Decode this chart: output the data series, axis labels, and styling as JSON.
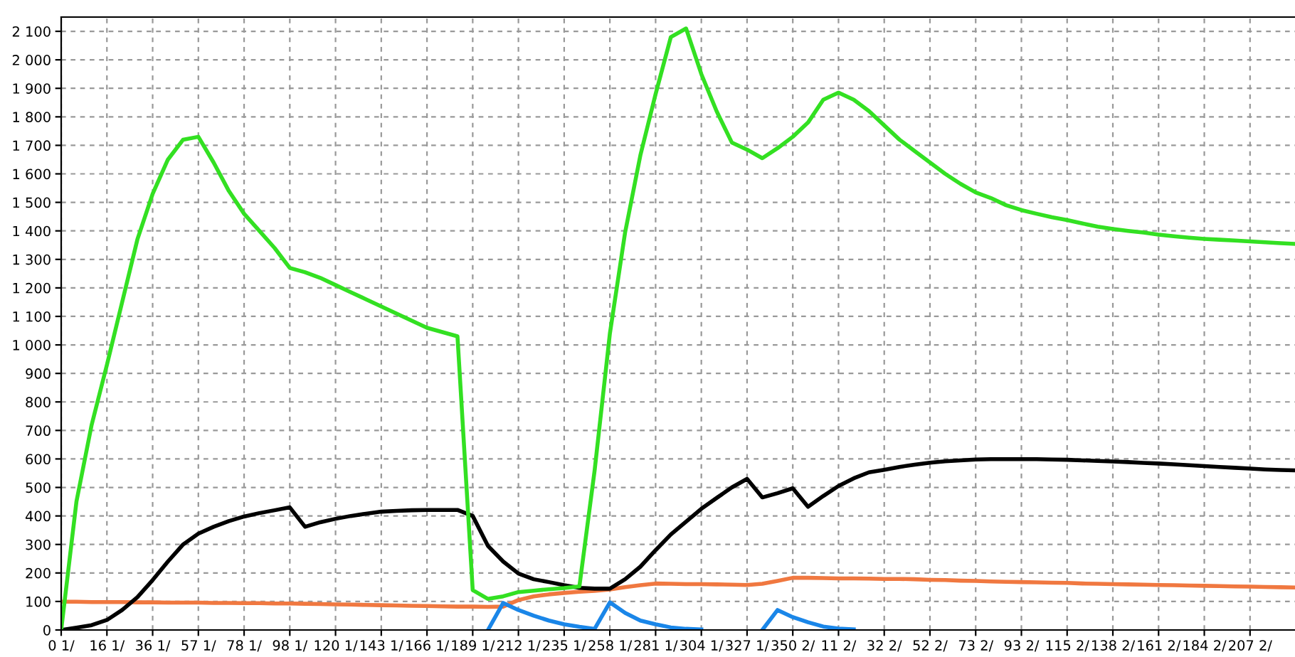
{
  "chart_data": {
    "type": "line",
    "categories": [
      "0 1/",
      null,
      null,
      "16 1/",
      null,
      null,
      "36 1/",
      null,
      null,
      "57 1/",
      null,
      null,
      "78 1/",
      null,
      null,
      "98 1/",
      null,
      null,
      "120 1/",
      null,
      null,
      "143 1/",
      null,
      null,
      "166 1/",
      null,
      null,
      "189 1/",
      null,
      null,
      "212 1/",
      null,
      null,
      "235 1/",
      null,
      null,
      "258 1/",
      null,
      null,
      "281 1/",
      null,
      null,
      "304 1/",
      null,
      null,
      "327 1/",
      null,
      null,
      "350 2/",
      null,
      null,
      "11 2/",
      null,
      null,
      "32 2/",
      null,
      null,
      "52 2/",
      null,
      null,
      "73 2/",
      null,
      null,
      "93 2/",
      null,
      null,
      "115 2/",
      null,
      null,
      "138 2/",
      null,
      null,
      "161 2/",
      null,
      null,
      "184 2/",
      null,
      null,
      "207 2/",
      null,
      null,
      null
    ],
    "ylim": [
      0,
      2150
    ],
    "yticks": [
      0,
      100,
      200,
      300,
      400,
      500,
      600,
      700,
      800,
      900,
      {
        "value": 1000,
        "label": "1 000"
      },
      {
        "value": 1100,
        "label": "1 100"
      },
      {
        "value": 1200,
        "label": "1 200"
      },
      {
        "value": 1300,
        "label": "1 300"
      },
      {
        "value": 1400,
        "label": "1 400"
      },
      {
        "value": 1500,
        "label": "1 500"
      },
      {
        "value": 1600,
        "label": "1 600"
      },
      {
        "value": 1700,
        "label": "1 700"
      },
      {
        "value": 1800,
        "label": "1 800"
      },
      {
        "value": 1900,
        "label": "1 900"
      },
      {
        "value": 2000,
        "label": "2 000"
      },
      {
        "value": 2100,
        "label": "2 100"
      }
    ],
    "grid": true,
    "marker": "none",
    "line_style": "solid",
    "series": [
      {
        "color": "#f07840",
        "values": [
          99,
          99,
          98,
          98,
          98,
          97,
          97,
          96,
          96,
          96,
          95,
          95,
          94,
          94,
          93,
          93,
          92,
          91,
          90,
          89,
          88,
          87,
          86,
          85,
          84,
          83,
          82,
          82,
          81,
          82,
          105,
          118,
          125,
          130,
          134,
          137,
          142,
          150,
          157,
          163,
          162,
          161,
          161,
          160,
          159,
          158,
          162,
          172,
          183,
          183,
          182,
          181,
          181,
          180,
          179,
          179,
          178,
          176,
          175,
          173,
          172,
          170,
          169,
          168,
          167,
          166,
          165,
          163,
          162,
          161,
          160,
          159,
          158,
          157,
          156,
          155,
          154,
          153,
          152,
          151,
          150,
          149
        ]
      },
      {
        "color": "#1a86e8",
        "values": [
          null,
          null,
          null,
          null,
          null,
          null,
          null,
          null,
          null,
          null,
          null,
          null,
          null,
          null,
          null,
          null,
          null,
          null,
          null,
          null,
          null,
          null,
          null,
          null,
          null,
          null,
          null,
          null,
          0,
          95,
          70,
          50,
          33,
          20,
          11,
          4,
          97,
          60,
          33,
          20,
          9,
          4,
          2,
          null,
          null,
          null,
          0,
          70,
          45,
          27,
          12,
          5,
          2,
          null,
          null,
          null,
          null,
          null,
          null,
          null,
          null,
          null,
          null,
          null,
          null,
          null,
          null,
          null,
          null,
          null,
          null,
          null,
          null,
          null,
          null,
          null,
          null,
          null,
          null,
          null,
          null,
          null
        ]
      },
      {
        "color": "#000000",
        "values": [
          0,
          8,
          17,
          35,
          70,
          115,
          175,
          240,
          300,
          338,
          362,
          382,
          398,
          410,
          420,
          430,
          362,
          378,
          390,
          400,
          408,
          415,
          418,
          420,
          421,
          421,
          421,
          400,
          295,
          240,
          198,
          178,
          168,
          157,
          148,
          145,
          145,
          178,
          222,
          280,
          335,
          380,
          425,
          463,
          500,
          530,
          465,
          480,
          497,
          432,
          470,
          505,
          532,
          553,
          562,
          572,
          580,
          587,
          592,
          595,
          598,
          599,
          599,
          599,
          599,
          598,
          597,
          595,
          593,
          591,
          589,
          586,
          584,
          581,
          578,
          575,
          572,
          569,
          566,
          563,
          561,
          560
        ]
      },
      {
        "color": "#33e022",
        "values": [
          0,
          450,
          720,
          930,
          1150,
          1370,
          1530,
          1650,
          1720,
          1730,
          1640,
          1540,
          1460,
          1400,
          1340,
          1270,
          1255,
          1235,
          1210,
          1185,
          1160,
          1135,
          1110,
          1085,
          1060,
          1045,
          1030,
          140,
          109,
          118,
          133,
          138,
          143,
          147,
          153,
          560,
          1040,
          1395,
          1665,
          1880,
          2080,
          2110,
          1950,
          1820,
          1710,
          1685,
          1655,
          1690,
          1730,
          1780,
          1860,
          1885,
          1860,
          1820,
          1770,
          1720,
          1680,
          1640,
          1600,
          1565,
          1535,
          1515,
          1490,
          1473,
          1460,
          1448,
          1438,
          1426,
          1415,
          1407,
          1400,
          1394,
          1387,
          1381,
          1376,
          1372,
          1369,
          1366,
          1363,
          1360,
          1357,
          1354
        ]
      }
    ]
  }
}
